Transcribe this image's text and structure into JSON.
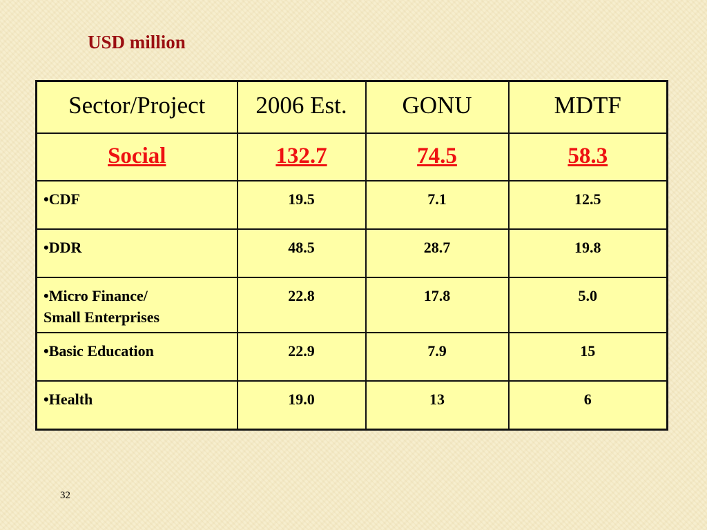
{
  "title": "USD million",
  "table": {
    "headers": [
      "Sector/Project",
      "2006 Est.",
      "GONU",
      "MDTF"
    ],
    "total": {
      "label": "Social",
      "est_2006": "132.7",
      "gonu": "74.5",
      "mdtf": "58.3"
    },
    "rows": [
      {
        "label": "•CDF",
        "est_2006": "19.5",
        "gonu": "7.1",
        "mdtf": "12.5"
      },
      {
        "label": "•DDR",
        "est_2006": "48.5",
        "gonu": "28.7",
        "mdtf": "19.8"
      },
      {
        "label_line1": "•Micro Finance/",
        "label_line2": "Small Enterprises",
        "est_2006": "22.8",
        "gonu": "17.8",
        "mdtf": "5.0"
      },
      {
        "label": "•Basic Education",
        "est_2006": "22.9",
        "gonu": "7.9",
        "mdtf": "15"
      },
      {
        "label": "•Health",
        "est_2006": "19.0",
        "gonu": "13",
        "mdtf": "6"
      }
    ]
  },
  "colors": {
    "title": "#9b0f12",
    "total_row_text": "#ee1111",
    "table_fill": "#ffffa6",
    "background": "#f6ecc8"
  },
  "page_number": "32"
}
